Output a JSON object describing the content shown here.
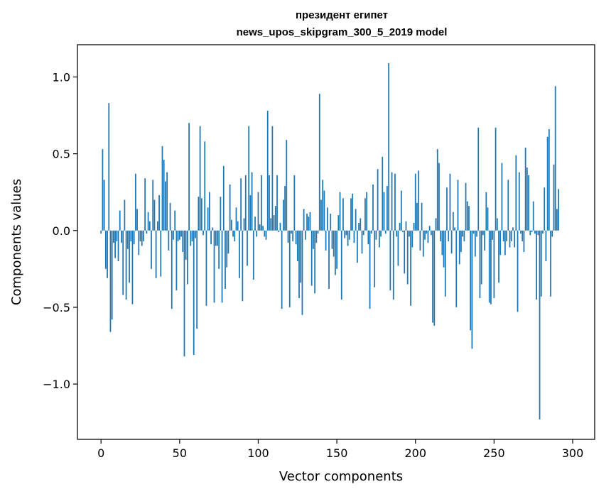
{
  "chart_data": {
    "type": "bar",
    "title_line1": "президент египет",
    "title_line2": "news_upos_skipgram_300_5_2019 model",
    "xlabel": "Vector components",
    "ylabel": "Components values",
    "xlim": [
      -15,
      314
    ],
    "ylim": [
      -1.36,
      1.21
    ],
    "xticks": [
      0,
      50,
      100,
      150,
      200,
      250,
      300
    ],
    "xtick_labels": [
      "0",
      "50",
      "100",
      "150",
      "200",
      "250",
      "300"
    ],
    "yticks": [
      -1.0,
      -0.5,
      0.0,
      0.5,
      1.0
    ],
    "ytick_labels": [
      "−1.0",
      "−0.5",
      "0.0",
      "0.5",
      "1.0"
    ],
    "bar_color": "#1f77b4",
    "grid": false,
    "values": [
      -0.02,
      0.53,
      0.33,
      -0.25,
      -0.31,
      0.83,
      -0.66,
      -0.58,
      -0.08,
      -0.18,
      -0.07,
      -0.2,
      0.13,
      -0.08,
      -0.42,
      0.2,
      -0.45,
      -0.12,
      -0.34,
      -0.07,
      -0.48,
      -0.09,
      0.37,
      0.14,
      -0.16,
      -0.07,
      -0.1,
      -0.07,
      0.34,
      -0.02,
      0.12,
      0.06,
      -0.25,
      0.33,
      0.2,
      -0.31,
      0.06,
      0.23,
      -0.3,
      0.55,
      0.46,
      0.32,
      0.38,
      -0.13,
      0.18,
      -0.51,
      -0.06,
      0.13,
      -0.39,
      -0.07,
      -0.06,
      -0.04,
      -0.14,
      -0.82,
      -0.19,
      -0.35,
      0.7,
      -0.1,
      -0.07,
      -0.81,
      -0.05,
      -0.64,
      0.22,
      0.68,
      0.21,
      -0.03,
      0.58,
      -0.49,
      0.15,
      0.25,
      -0.09,
      0.02,
      -0.47,
      -0.1,
      -0.1,
      -0.25,
      0.22,
      -0.47,
      0.42,
      -0.38,
      -0.24,
      -0.15,
      0.3,
      0.07,
      -0.04,
      -0.07,
      0.15,
      0.06,
      -0.31,
      0.34,
      -0.46,
      0.08,
      0.36,
      -0.23,
      0.68,
      0.23,
      0.38,
      -0.32,
      0.09,
      -0.04,
      0.25,
      0.04,
      0.36,
      0.03,
      -0.04,
      -0.06,
      0.78,
      0.36,
      0.08,
      0.68,
      0.1,
      0.16,
      0.36,
      -0.01,
      0.05,
      -0.51,
      0.2,
      0.29,
      0.59,
      -0.08,
      -0.5,
      -0.02,
      -0.07,
      0.36,
      -0.09,
      -0.2,
      -0.44,
      -0.34,
      -0.55,
      0.14,
      -0.06,
      0.11,
      0.09,
      0.12,
      -0.36,
      -0.12,
      -0.41,
      -0.08,
      -0.02,
      0.89,
      0.2,
      0.33,
      0.26,
      -0.13,
      0.15,
      -0.38,
      0.11,
      -0.12,
      -0.17,
      -0.29,
      -0.25,
      0.1,
      0.25,
      -0.45,
      0.21,
      -0.05,
      -0.03,
      -0.1,
      -0.06,
      0.21,
      0.24,
      -0.08,
      0.14,
      -0.21,
      0.05,
      0.08,
      -0.15,
      -0.03,
      0.21,
      0.25,
      -0.09,
      -0.51,
      -0.02,
      0.3,
      -0.37,
      -0.06,
      0.4,
      -0.11,
      -0.04,
      0.48,
      0.25,
      -0.02,
      0.29,
      1.09,
      -0.39,
      0.38,
      -0.45,
      0.37,
      -0.04,
      -0.23,
      0.05,
      0.26,
      -0.01,
      -0.28,
      0.06,
      -0.35,
      -0.04,
      -0.49,
      -0.11,
      0.05,
      0.37,
      0.18,
      0.39,
      -0.13,
      0.18,
      -0.17,
      -0.06,
      -0.02,
      -0.08,
      0.03,
      -0.03,
      -0.6,
      -0.62,
      0.08,
      0.53,
      0.44,
      -0.07,
      -0.16,
      -0.24,
      -0.43,
      0.28,
      -0.07,
      0.37,
      -0.15,
      0.12,
      0.02,
      -0.5,
      0.33,
      -0.22,
      -0.14,
      -0.04,
      -0.07,
      0.31,
      0.19,
      0.16,
      -0.65,
      -0.77,
      -0.02,
      -0.17,
      -0.04,
      0.67,
      -0.44,
      -0.35,
      -0.03,
      -0.13,
      0.25,
      0.15,
      -0.47,
      -0.48,
      -0.06,
      -0.44,
      0.67,
      0.08,
      -0.34,
      -0.16,
      0.44,
      -0.07,
      -0.16,
      -0.07,
      0.33,
      -0.11,
      -0.07,
      0.02,
      -0.11,
      0.49,
      -0.53,
      0.38,
      -0.02,
      -0.07,
      -0.14,
      0.54,
      0.41,
      0.36,
      -0.03,
      -0.01,
      0.19,
      -0.02,
      -0.45,
      -0.03,
      -1.23,
      -0.43,
      -0.02,
      0.28,
      -0.2,
      0.61,
      0.66,
      -0.43,
      -0.04,
      0.43,
      0.94,
      0.14,
      0.27
    ]
  }
}
